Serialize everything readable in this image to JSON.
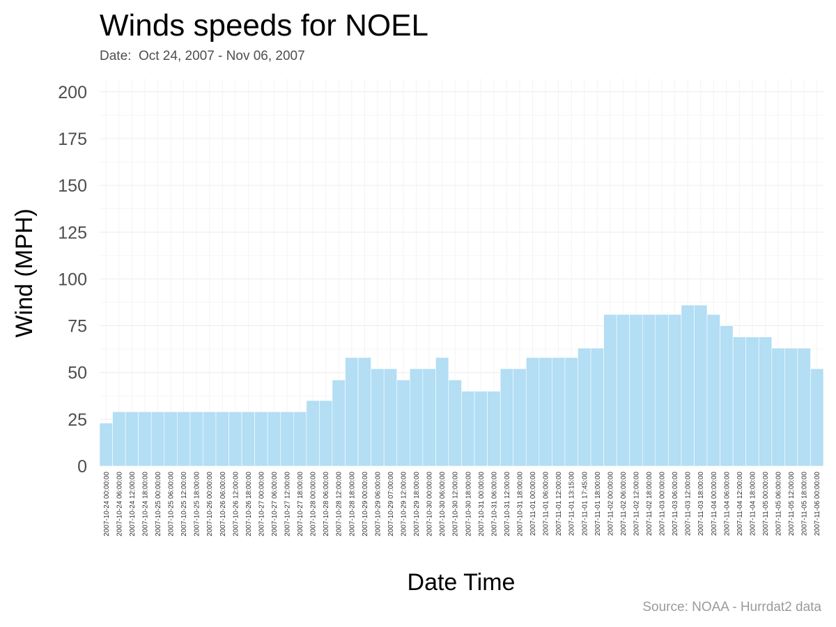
{
  "title": "Winds speeds for NOEL",
  "subtitle": "Date:  Oct 24, 2007 - Nov 06, 2007",
  "caption": "Source: NOAA - Hurrdat2 data",
  "colors": {
    "bar": "#b3def4",
    "bar_edge": "#ffffff",
    "grid": "#ececec"
  },
  "chart_data": {
    "type": "bar",
    "xlabel": "Date Time",
    "ylabel": "Wind (MPH)",
    "ylim": [
      0,
      207
    ],
    "yticks": [
      0,
      25,
      50,
      75,
      100,
      125,
      150,
      175,
      200
    ],
    "grid": true,
    "categories": [
      "2007-10-24 00:00:00",
      "2007-10-24 06:00:00",
      "2007-10-24 12:00:00",
      "2007-10-24 18:00:00",
      "2007-10-25 00:00:00",
      "2007-10-25 06:00:00",
      "2007-10-25 12:00:00",
      "2007-10-25 18:00:00",
      "2007-10-26 00:00:00",
      "2007-10-26 06:00:00",
      "2007-10-26 12:00:00",
      "2007-10-26 18:00:00",
      "2007-10-27 00:00:00",
      "2007-10-27 06:00:00",
      "2007-10-27 12:00:00",
      "2007-10-27 18:00:00",
      "2007-10-28 00:00:00",
      "2007-10-28 06:00:00",
      "2007-10-28 12:00:00",
      "2007-10-28 18:00:00",
      "2007-10-29 00:00:00",
      "2007-10-29 06:00:00",
      "2007-10-29 07:00:00",
      "2007-10-29 12:00:00",
      "2007-10-29 18:00:00",
      "2007-10-30 00:00:00",
      "2007-10-30 06:00:00",
      "2007-10-30 12:00:00",
      "2007-10-30 18:00:00",
      "2007-10-31 00:00:00",
      "2007-10-31 06:00:00",
      "2007-10-31 12:00:00",
      "2007-10-31 18:00:00",
      "2007-11-01 00:00:00",
      "2007-11-01 06:00:00",
      "2007-11-01 12:00:00",
      "2007-11-01 13:15:00",
      "2007-11-01 17:45:00",
      "2007-11-01 18:00:00",
      "2007-11-02 00:00:00",
      "2007-11-02 06:00:00",
      "2007-11-02 12:00:00",
      "2007-11-02 18:00:00",
      "2007-11-03 00:00:00",
      "2007-11-03 06:00:00",
      "2007-11-03 12:00:00",
      "2007-11-03 18:00:00",
      "2007-11-04 00:00:00",
      "2007-11-04 06:00:00",
      "2007-11-04 12:00:00",
      "2007-11-04 18:00:00",
      "2007-11-05 00:00:00",
      "2007-11-05 06:00:00",
      "2007-11-05 12:00:00",
      "2007-11-05 18:00:00",
      "2007-11-06 00:00:00"
    ],
    "values": [
      23,
      29,
      29,
      29,
      29,
      29,
      29,
      29,
      29,
      29,
      29,
      29,
      29,
      29,
      29,
      29,
      35,
      35,
      46,
      58,
      58,
      52,
      52,
      46,
      52,
      52,
      58,
      46,
      40,
      40,
      40,
      52,
      52,
      58,
      58,
      58,
      58,
      63,
      63,
      81,
      81,
      81,
      81,
      81,
      81,
      86,
      86,
      81,
      75,
      69,
      69,
      69,
      63,
      63,
      63,
      52
    ]
  }
}
